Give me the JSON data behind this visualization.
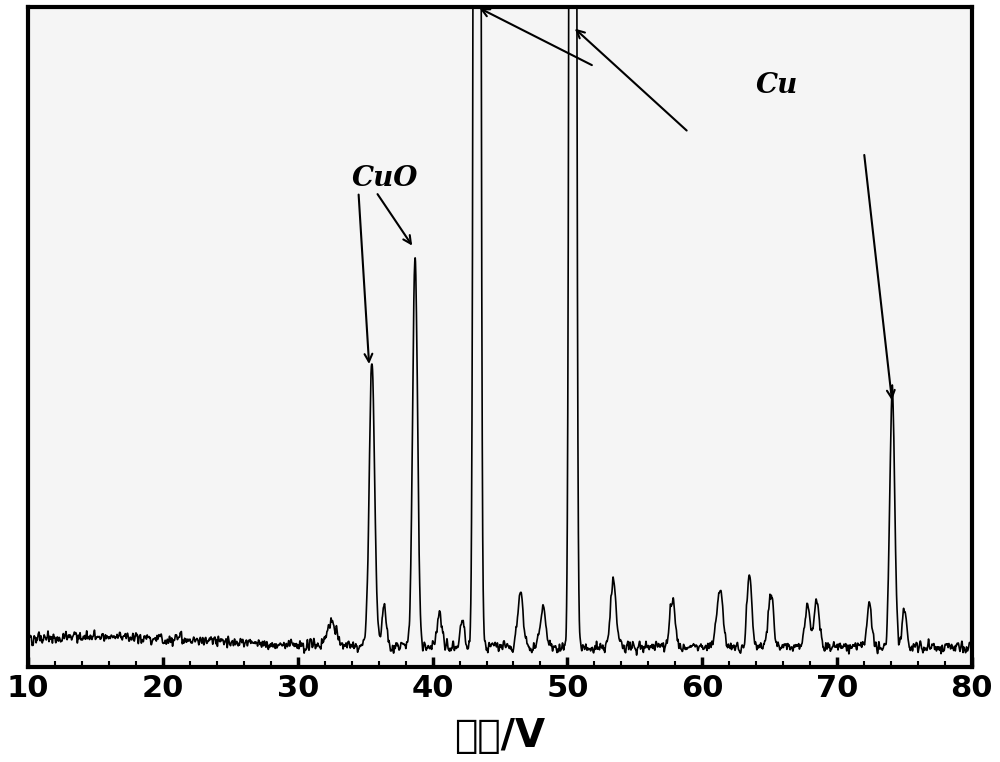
{
  "title": "",
  "xlabel": "电压/V",
  "xlabel_fontsize": 28,
  "xtick_fontsize": 22,
  "xlim": [
    10,
    80
  ],
  "ylim": [
    0,
    1.0
  ],
  "xticks": [
    10,
    20,
    30,
    40,
    50,
    60,
    70,
    80
  ],
  "background_color": "#ffffff",
  "line_color": "#000000",
  "CuO_label_color": "#000000",
  "Cu_label_color": "#000000",
  "noise_seed": 12345
}
